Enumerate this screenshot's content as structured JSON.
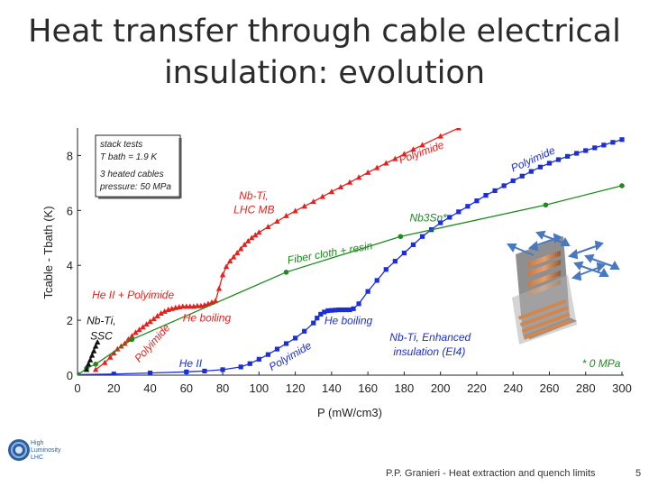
{
  "slide": {
    "title_line1": "Heat transfer through cable electrical",
    "title_line2": "insulation: evolution",
    "footer": "P.P. Granieri - Heat extraction and quench limits",
    "page_number": "5",
    "logo_lines": [
      "High",
      "Luminosity",
      "LHC"
    ]
  },
  "chart_data": {
    "type": "line",
    "xlabel": "P (mW/cm3)",
    "ylabel": "Tcable - Tbath (K)",
    "xlim": [
      0,
      300
    ],
    "ylim": [
      0,
      9
    ],
    "xticks": [
      0,
      20,
      40,
      60,
      80,
      100,
      120,
      140,
      160,
      180,
      200,
      220,
      240,
      260,
      280,
      300
    ],
    "yticks": [
      0,
      2,
      4,
      6,
      8
    ],
    "inset_legend": [
      "stack tests",
      "T bath = 1.9 K",
      "3 heated cables",
      "pressure: 50 MPa"
    ],
    "series": [
      {
        "color": "#e8201c",
        "marker": "triangle",
        "x": [
          10,
          15,
          18,
          20,
          22,
          24,
          26,
          28,
          30,
          32,
          34,
          36,
          38,
          40,
          42,
          44,
          46,
          48,
          50,
          52,
          54,
          56,
          58,
          60,
          62,
          64,
          66,
          68,
          70,
          72,
          74,
          76,
          78,
          80,
          82,
          84,
          86,
          88,
          90,
          92,
          94,
          96,
          98,
          100,
          105,
          110,
          115,
          120,
          125,
          130,
          135,
          140,
          145,
          150,
          155,
          160,
          165,
          170,
          175,
          180,
          185,
          190,
          200,
          210
        ],
        "y": [
          0.2,
          0.45,
          0.65,
          0.8,
          0.95,
          1.05,
          1.15,
          1.3,
          1.42,
          1.55,
          1.65,
          1.75,
          1.85,
          1.95,
          2.05,
          2.15,
          2.25,
          2.32,
          2.38,
          2.42,
          2.45,
          2.48,
          2.5,
          2.5,
          2.5,
          2.5,
          2.52,
          2.52,
          2.55,
          2.6,
          2.65,
          2.7,
          3.15,
          3.65,
          3.95,
          4.15,
          4.3,
          4.45,
          4.6,
          4.75,
          4.88,
          5.0,
          5.1,
          5.2,
          5.4,
          5.6,
          5.8,
          5.98,
          6.15,
          6.32,
          6.5,
          6.68,
          6.85,
          7.02,
          7.2,
          7.38,
          7.55,
          7.72,
          7.88,
          8.05,
          8.22,
          8.38,
          8.7,
          9.0
        ]
      },
      {
        "color": "#1c2fd6",
        "marker": "square",
        "x": [
          0,
          20,
          40,
          60,
          70,
          80,
          90,
          95,
          100,
          105,
          110,
          115,
          120,
          125,
          130,
          132,
          134,
          136,
          138,
          140,
          142,
          144,
          146,
          148,
          150,
          152,
          155,
          160,
          165,
          170,
          175,
          180,
          185,
          190,
          195,
          200,
          205,
          210,
          215,
          220,
          225,
          230,
          235,
          240,
          245,
          250,
          255,
          260,
          265,
          270,
          275,
          280,
          285,
          290,
          295,
          300
        ],
        "y": [
          0.02,
          0.04,
          0.08,
          0.12,
          0.15,
          0.2,
          0.3,
          0.42,
          0.58,
          0.75,
          0.95,
          1.15,
          1.35,
          1.6,
          1.9,
          2.08,
          2.22,
          2.3,
          2.35,
          2.36,
          2.37,
          2.38,
          2.38,
          2.38,
          2.38,
          2.42,
          2.6,
          3.05,
          3.45,
          3.85,
          4.15,
          4.45,
          4.75,
          5.05,
          5.3,
          5.55,
          5.75,
          5.95,
          6.15,
          6.35,
          6.55,
          6.72,
          6.9,
          7.08,
          7.25,
          7.42,
          7.58,
          7.72,
          7.85,
          7.97,
          8.08,
          8.18,
          8.28,
          8.38,
          8.48,
          8.58
        ]
      },
      {
        "color": "#1e8a1e",
        "marker": "circle",
        "x": [
          0,
          5,
          10,
          30,
          115,
          178,
          258,
          300
        ],
        "y": [
          0,
          0.25,
          0.4,
          1.3,
          3.75,
          5.05,
          6.2,
          6.9
        ]
      },
      {
        "color": "#111111",
        "marker": "triangle",
        "x": [
          5,
          6,
          7,
          8,
          9,
          10,
          11
        ],
        "y": [
          0.2,
          0.4,
          0.55,
          0.72,
          0.88,
          1.05,
          1.2
        ]
      }
    ],
    "annotations": [
      {
        "text": "Polyimide",
        "x": 178,
        "y": 7.7,
        "color": "#e8201c"
      },
      {
        "text": "Nb-Ti,",
        "x": 89,
        "y": 6.4,
        "color": "#e8201c"
      },
      {
        "text": "LHC MB",
        "x": 86,
        "y": 5.9,
        "color": "#e8201c"
      },
      {
        "text": "Polyimide",
        "x": 240,
        "y": 7.4,
        "color": "#1c2fd6"
      },
      {
        "text": "Nb3Sn*",
        "x": 183,
        "y": 5.6,
        "color": "#1e8a1e"
      },
      {
        "text": "Fiber cloth + resin",
        "x": 116,
        "y": 4.05,
        "color": "#1e8a1e"
      },
      {
        "text": "He II + Polyimide",
        "x": 8,
        "y": 2.8,
        "color": "#e8201c"
      },
      {
        "text": "Nb-Ti,",
        "x": 5,
        "y": 1.85,
        "color": "#111111"
      },
      {
        "text": "SSC",
        "x": 7,
        "y": 1.3,
        "color": "#111111"
      },
      {
        "text": "He boiling",
        "x": 58,
        "y": 1.95,
        "color": "#e8201c"
      },
      {
        "text": "Polyimide",
        "x": 34,
        "y": 0.45,
        "color": "#e8201c"
      },
      {
        "text": "He boiling",
        "x": 136,
        "y": 1.85,
        "color": "#1c2fd6"
      },
      {
        "text": "Polyimide",
        "x": 107,
        "y": 0.15,
        "color": "#1c2fd6"
      },
      {
        "text": "He II",
        "x": 56,
        "y": 0.3,
        "color": "#1c2fd6"
      },
      {
        "text": "Nb-Ti, Enhanced",
        "x": 172,
        "y": 1.25,
        "color": "#1c2fd6"
      },
      {
        "text": "insulation (EI4)",
        "x": 174,
        "y": 0.72,
        "color": "#1c2fd6"
      },
      {
        "text": "* 0 MPa",
        "x": 278,
        "y": 0.3,
        "color": "#1e8a1e"
      }
    ],
    "grid": false
  }
}
